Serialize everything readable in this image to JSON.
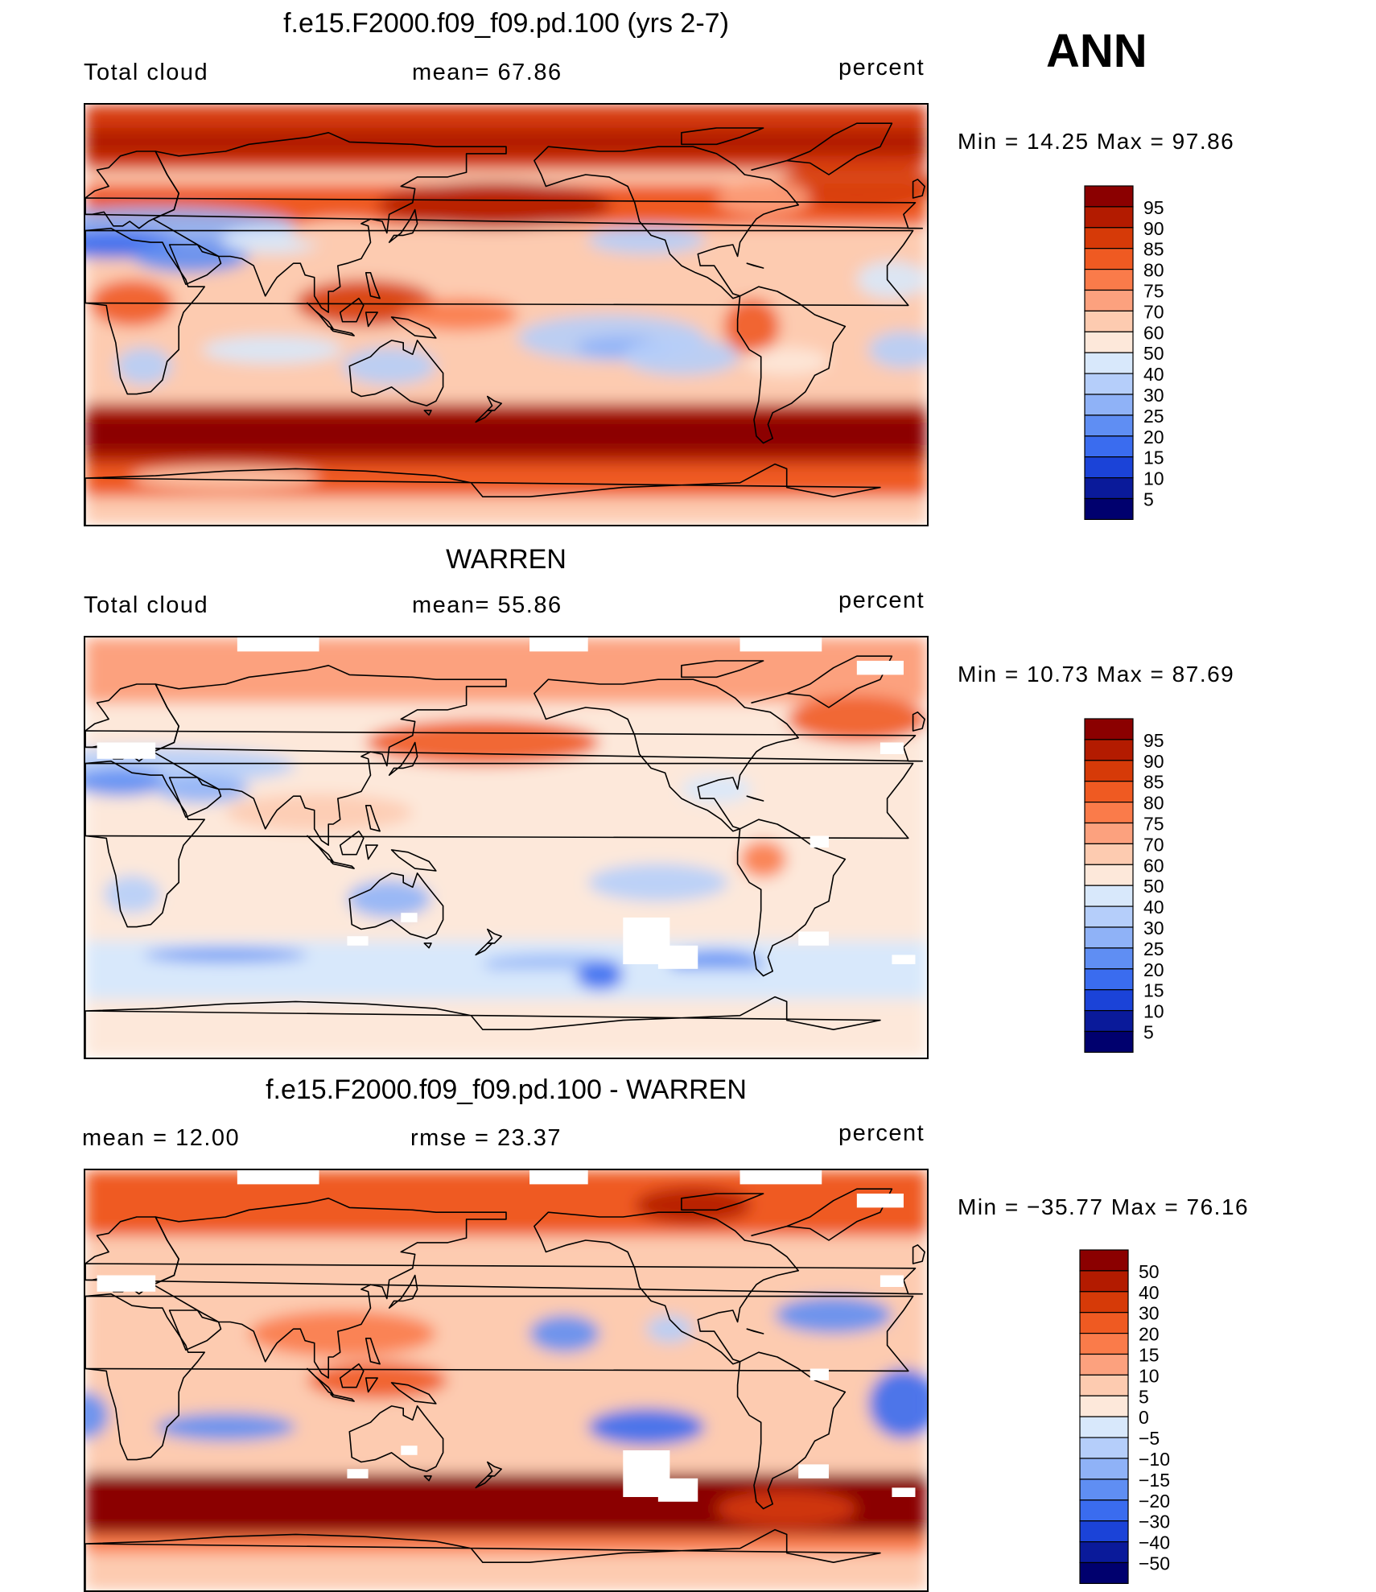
{
  "season": "ANN",
  "panels": [
    {
      "title": "f.e15.F2000.f09_f09.pd.100 (yrs 2-7)",
      "left_label": "Total cloud",
      "center_label": "mean=   67.86",
      "units": "percent",
      "minmax": "Min  =   14.25  Max  =   97.86",
      "colorbar": [
        "95",
        "90",
        "85",
        "80",
        "75",
        "70",
        "60",
        "50",
        "40",
        "30",
        "25",
        "20",
        "15",
        "10",
        "5"
      ],
      "colors": [
        "#8b0000",
        "#b31b00",
        "#d63a08",
        "#ef5a22",
        "#fa7b4a",
        "#fca17e",
        "#fdcbb0",
        "#fde8da",
        "#d8e8fb",
        "#b5cefa",
        "#8fb2f7",
        "#5f8ef3",
        "#3a6cef",
        "#1b43d8",
        "#0a1a9a",
        "#00006e"
      ],
      "map_desc": "model"
    },
    {
      "title": "WARREN",
      "left_label": "Total cloud",
      "center_label": "mean=   55.86",
      "units": "percent",
      "minmax": "Min  =   10.73  Max  =   87.69",
      "colorbar": [
        "95",
        "90",
        "85",
        "80",
        "75",
        "70",
        "60",
        "50",
        "40",
        "30",
        "25",
        "20",
        "15",
        "10",
        "5"
      ],
      "colors": [
        "#8b0000",
        "#b31b00",
        "#d63a08",
        "#ef5a22",
        "#fa7b4a",
        "#fca17e",
        "#fdcbb0",
        "#fde8da",
        "#d8e8fb",
        "#b5cefa",
        "#8fb2f7",
        "#5f8ef3",
        "#3a6cef",
        "#1b43d8",
        "#0a1a9a",
        "#00006e"
      ],
      "map_desc": "obs"
    },
    {
      "title": "f.e15.F2000.f09_f09.pd.100 - WARREN",
      "left_label": "mean  =     12.00",
      "center_label": "rmse  =     23.37",
      "units": "percent",
      "minmax": "Min  = −35.77  Max  =    76.16",
      "colorbar": [
        "50",
        "40",
        "30",
        "20",
        "15",
        "10",
        "5",
        "0",
        "−5",
        "−10",
        "−15",
        "−20",
        "−30",
        "−40",
        "−50"
      ],
      "colors": [
        "#8b0000",
        "#b31b00",
        "#d63a08",
        "#ef5a22",
        "#fa7b4a",
        "#fca17e",
        "#fdcbb0",
        "#fde8da",
        "#d8e8fb",
        "#b5cefa",
        "#8fb2f7",
        "#5f8ef3",
        "#3a6cef",
        "#1b43d8",
        "#0a1a9a",
        "#00006e"
      ],
      "map_desc": "diff"
    }
  ],
  "chart_data": {
    "type": "heatmap",
    "panels": [
      {
        "mean": 67.86,
        "min": 14.25,
        "max": 97.86,
        "units": "percent",
        "levels": [
          5,
          10,
          15,
          20,
          25,
          30,
          40,
          50,
          60,
          70,
          75,
          80,
          85,
          90,
          95
        ]
      },
      {
        "mean": 55.86,
        "min": 10.73,
        "max": 87.69,
        "units": "percent",
        "levels": [
          5,
          10,
          15,
          20,
          25,
          30,
          40,
          50,
          60,
          70,
          75,
          80,
          85,
          90,
          95
        ]
      },
      {
        "mean": 12.0,
        "rmse": 23.37,
        "min": -35.77,
        "max": 76.16,
        "units": "percent",
        "levels": [
          -50,
          -40,
          -30,
          -20,
          -15,
          -10,
          -5,
          0,
          5,
          10,
          15,
          20,
          30,
          40,
          50
        ]
      }
    ]
  }
}
